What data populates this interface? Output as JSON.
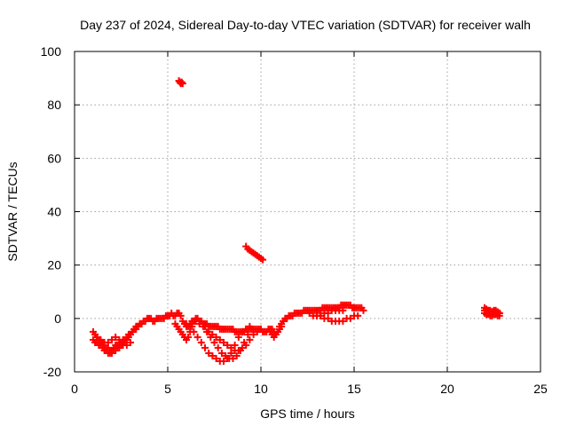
{
  "chart_data": {
    "type": "scatter",
    "title": "Day 237 of 2024, Sidereal Day-to-day VTEC variation (SDTVAR) for receiver walh",
    "xlabel": "GPS time / hours",
    "ylabel": "SDTVAR / TECUs",
    "xlim": [
      0,
      25
    ],
    "ylim": [
      -20,
      100
    ],
    "xticks": [
      0,
      5,
      10,
      15,
      20,
      25
    ],
    "yticks": [
      -20,
      0,
      20,
      40,
      60,
      80,
      100
    ],
    "grid": true,
    "marker": "plus",
    "series": [
      {
        "name": "SDTVAR",
        "color": "#ff0000",
        "x": [
          1.0,
          1.1,
          1.2,
          1.3,
          1.4,
          1.5,
          1.6,
          1.7,
          1.8,
          1.9,
          2.0,
          2.1,
          2.2,
          2.3,
          2.4,
          2.5,
          2.6,
          2.7,
          2.8,
          2.9,
          3.0,
          3.1,
          3.2,
          3.3,
          3.4,
          3.5,
          3.6,
          3.7,
          3.8,
          3.9,
          4.0,
          4.1,
          4.2,
          4.3,
          4.4,
          4.5,
          4.6,
          4.7,
          4.8,
          4.9,
          5.0,
          5.1,
          5.2,
          5.3,
          5.4,
          5.5,
          5.6,
          5.7,
          5.8,
          5.9,
          6.0,
          6.1,
          6.2,
          6.3,
          6.4,
          6.5,
          6.6,
          6.7,
          6.8,
          6.9,
          7.0,
          7.1,
          7.2,
          7.3,
          7.4,
          7.5,
          7.6,
          7.7,
          7.8,
          7.9,
          8.0,
          8.1,
          8.2,
          8.3,
          8.4,
          8.5,
          8.6,
          8.7,
          8.8,
          8.9,
          9.0,
          9.1,
          9.2,
          9.3,
          9.4,
          9.5,
          9.6,
          9.7,
          9.8,
          9.9,
          10.0,
          10.1,
          10.2,
          10.3,
          10.4,
          10.5,
          10.6,
          10.7,
          10.8,
          10.9,
          11.0,
          11.1,
          11.2,
          11.3,
          11.4,
          11.5,
          11.6,
          11.7,
          11.8,
          11.9,
          12.0,
          12.1,
          12.2,
          12.3,
          12.4,
          12.5,
          12.6,
          12.7,
          12.8,
          12.9,
          13.0,
          13.1,
          13.2,
          13.3,
          13.4,
          13.5,
          13.6,
          13.7,
          13.8,
          13.9,
          14.0,
          14.1,
          14.2,
          14.3,
          14.4,
          14.5,
          14.6,
          14.7,
          14.8,
          14.9,
          15.0,
          15.1,
          15.2,
          15.3,
          15.4,
          15.5,
          1.0,
          1.1,
          1.2,
          1.3,
          1.4,
          1.5,
          1.6,
          1.7,
          1.8,
          1.9,
          2.0,
          2.1,
          2.2,
          2.3,
          2.4,
          2.5,
          2.6,
          2.7,
          2.8,
          2.9,
          3.0,
          3.1,
          3.2,
          3.3,
          3.4,
          3.5,
          1.2,
          1.4,
          1.6,
          1.8,
          2.0,
          2.2,
          2.4,
          2.6,
          2.8,
          3.0,
          6.0,
          6.2,
          6.4,
          6.6,
          6.8,
          7.0,
          7.2,
          7.4,
          7.6,
          7.8,
          8.0,
          8.2,
          8.4,
          8.6,
          8.8,
          9.0,
          9.2,
          9.4,
          6.5,
          6.7,
          6.9,
          7.1,
          7.3,
          7.5,
          7.7,
          7.9,
          8.1,
          8.3,
          8.5,
          8.7,
          8.9,
          9.1,
          9.3,
          9.5,
          7.0,
          7.2,
          7.4,
          7.6,
          7.8,
          8.0,
          8.2,
          8.4,
          8.6,
          8.8,
          9.0,
          9.2,
          9.4,
          9.6,
          9.8,
          10.0,
          5.4,
          5.5,
          5.6,
          5.7,
          5.8,
          5.9,
          6.0,
          6.1,
          6.2,
          6.3,
          6.4,
          6.5,
          10.5,
          10.6,
          10.7,
          10.8,
          10.9,
          11.0,
          11.1,
          11.2,
          13.0,
          13.2,
          13.4,
          13.6,
          13.8,
          14.0,
          14.2,
          14.4,
          14.6,
          14.8,
          15.0,
          15.2,
          12.6,
          12.8,
          13.0,
          13.2,
          13.4,
          13.6,
          13.8,
          14.0,
          14.2,
          14.4,
          5.6,
          5.65,
          5.7,
          5.75,
          5.8,
          9.2,
          9.3,
          9.4,
          9.5,
          9.6,
          9.7,
          9.8,
          9.9,
          10.0,
          10.1,
          22.0,
          22.1,
          22.2,
          22.3,
          22.4,
          22.5,
          22.6,
          22.7,
          22.8,
          22.0,
          22.1,
          22.2,
          22.3,
          22.4,
          22.5,
          22.6,
          22.7,
          22.8,
          22.0,
          22.2,
          22.4,
          22.6,
          22.8
        ],
        "y": [
          -5,
          -6,
          -7,
          -8,
          -9,
          -9,
          -10,
          -11,
          -11,
          -12,
          -12,
          -11,
          -10,
          -10,
          -9,
          -9,
          -8,
          -8,
          -7,
          -6,
          -6,
          -5,
          -4,
          -3,
          -3,
          -2,
          -2,
          -1,
          -1,
          0,
          0,
          0,
          -1,
          -1,
          0,
          0,
          0,
          0,
          0,
          1,
          1,
          1,
          2,
          1,
          1,
          2,
          2,
          1,
          -1,
          -2,
          -3,
          -3,
          -2,
          -1,
          -1,
          0,
          0,
          -1,
          -1,
          -2,
          -2,
          -2,
          -3,
          -3,
          -3,
          -3,
          -3,
          -3,
          -4,
          -4,
          -4,
          -4,
          -4,
          -4,
          -4,
          -4,
          -5,
          -5,
          -5,
          -5,
          -5,
          -5,
          -4,
          -4,
          -4,
          -4,
          -4,
          -4,
          -4,
          -4,
          -4,
          -5,
          -5,
          -5,
          -4,
          -4,
          -4,
          -5,
          -6,
          -5,
          -3,
          -2,
          -1,
          0,
          0,
          1,
          1,
          1,
          2,
          2,
          2,
          2,
          2,
          3,
          3,
          3,
          3,
          3,
          3,
          3,
          3,
          3,
          3,
          4,
          4,
          4,
          4,
          4,
          4,
          4,
          4,
          4,
          4,
          5,
          5,
          5,
          5,
          5,
          5,
          4,
          4,
          4,
          4,
          4,
          4,
          3,
          -8,
          -9,
          -9,
          -10,
          -10,
          -11,
          -12,
          -12,
          -13,
          -13,
          -13,
          -12,
          -12,
          -11,
          -11,
          -10,
          -10,
          -9,
          -8,
          -7,
          -6,
          -5,
          -4,
          -4,
          -3,
          -2,
          -7,
          -8,
          -9,
          -9,
          -8,
          -7,
          -8,
          -9,
          -10,
          -9,
          -2,
          -3,
          -5,
          -7,
          -9,
          -11,
          -13,
          -14,
          -15,
          -16,
          -16,
          -15,
          -13,
          -10,
          -7,
          -5,
          -4,
          -3,
          -1,
          -2,
          -3,
          -5,
          -7,
          -9,
          -11,
          -13,
          -14,
          -15,
          -15,
          -14,
          -12,
          -9,
          -6,
          -4,
          -3,
          -5,
          -6,
          -7,
          -8,
          -9,
          -10,
          -11,
          -12,
          -12,
          -11,
          -10,
          -8,
          -6,
          -5,
          -4,
          -2,
          -3,
          -4,
          -5,
          -6,
          -7,
          -8,
          -7,
          -5,
          -3,
          -1,
          -1,
          -5,
          -6,
          -7,
          -6,
          -5,
          -4,
          -3,
          -1,
          1,
          1,
          0,
          0,
          -1,
          -1,
          -1,
          -1,
          0,
          0,
          1,
          1,
          2,
          1,
          1,
          1,
          2,
          2,
          3,
          3,
          3,
          3,
          89,
          88.5,
          88,
          88.5,
          88,
          27,
          26,
          25.5,
          25,
          24.5,
          24,
          23.5,
          23,
          22.5,
          22,
          4,
          3.5,
          3,
          3,
          2.5,
          3,
          3,
          2.5,
          2,
          2,
          1.5,
          1.5,
          1,
          1,
          1.5,
          1.5,
          1,
          1,
          3,
          3,
          2.5,
          2.5,
          2
        ]
      }
    ]
  }
}
